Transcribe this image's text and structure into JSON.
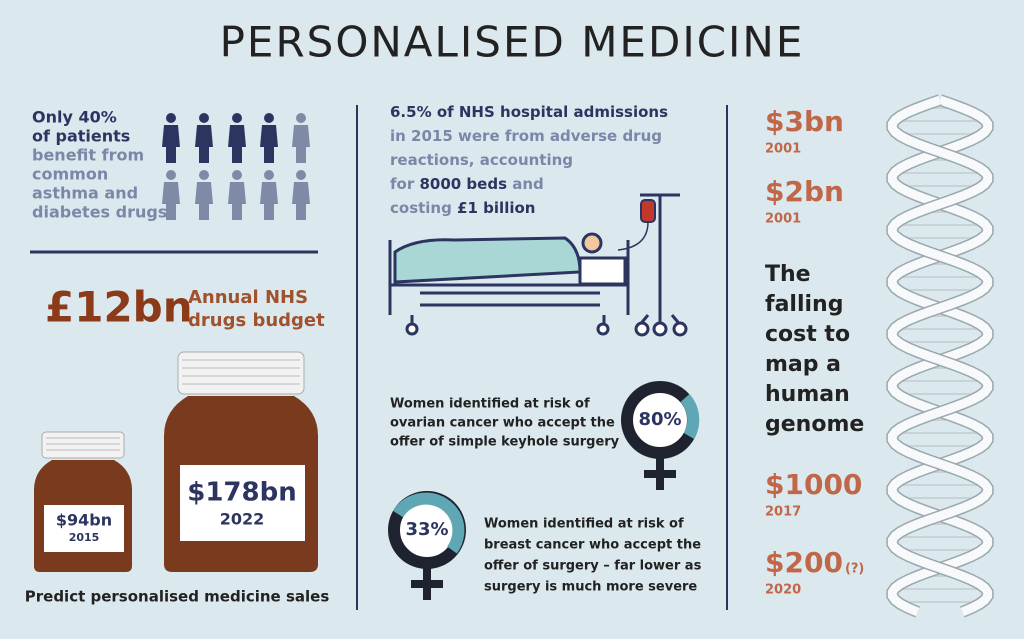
{
  "title": "PERSONALISED MEDICINE",
  "patients": {
    "highlight": [
      "Only 40%",
      "of patients"
    ],
    "rest": [
      "benefit from",
      "common",
      "asthma and",
      "diabetes drugs"
    ]
  },
  "budget": {
    "amount": "£12bn",
    "label": [
      "Annual NHS",
      "drugs budget"
    ]
  },
  "sales": {
    "jars": [
      {
        "amount": "$94bn",
        "year": "2015"
      },
      {
        "amount": "$178bn",
        "year": "2022"
      }
    ],
    "caption": "Predict personalised medicine sales"
  },
  "admissions": {
    "lines": [
      [
        {
          "text": "6.5% of NHS hospital admissions",
          "strong": true
        }
      ],
      [
        {
          "text": "in 2015 were from adverse drug",
          "strong": false
        }
      ],
      [
        {
          "text": "reactions, accounting",
          "strong": false
        }
      ],
      [
        {
          "text": "for ",
          "strong": false
        },
        {
          "text": "8000 beds",
          "strong": true
        },
        {
          "text": " and",
          "strong": false
        }
      ],
      [
        {
          "text": "costing ",
          "strong": false
        },
        {
          "text": "£1 billion",
          "strong": true
        }
      ]
    ]
  },
  "ovarian": {
    "text": [
      "Women identified at risk of",
      "ovarian cancer who accept the",
      "offer of simple keyhole surgery"
    ],
    "percent": "80%"
  },
  "breast": {
    "percent": "33%",
    "text": [
      "Women identified at risk of",
      "breast cancer who accept the",
      "offer of surgery – far lower as",
      "surgery is much more severe"
    ]
  },
  "genome": {
    "heading": [
      "The",
      "falling",
      "cost to",
      "map a",
      "human",
      "genome"
    ],
    "costs": [
      {
        "amount": "$3bn",
        "year": "2001"
      },
      {
        "amount": "$2bn",
        "year": "2001"
      },
      {
        "amount": "$1000",
        "year": "2017"
      },
      {
        "amount": "$200",
        "note": "(?)",
        "year": "2020"
      }
    ]
  }
}
